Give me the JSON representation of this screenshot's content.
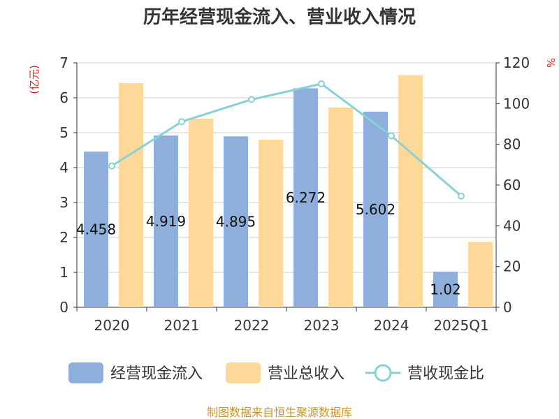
{
  "chart_data": {
    "type": "bar",
    "title": "历年经营现金流入、营业收入情况",
    "categories": [
      "2020",
      "2021",
      "2022",
      "2023",
      "2024",
      "2025Q1"
    ],
    "series": [
      {
        "name": "经营现金流入",
        "type": "bar",
        "axis": "left",
        "color": "#8eaedb",
        "values": [
          4.458,
          4.919,
          4.895,
          6.272,
          5.602,
          1.02
        ],
        "labels": [
          "4.458",
          "4.919",
          "4.895",
          "6.272",
          "5.602",
          "1.02"
        ]
      },
      {
        "name": "营业总收入",
        "type": "bar",
        "axis": "left",
        "color": "#fdd898",
        "values": [
          6.42,
          5.4,
          4.8,
          5.72,
          6.65,
          1.87
        ]
      },
      {
        "name": "营收现金比",
        "type": "line",
        "axis": "right",
        "color": "#88d1d4",
        "values": [
          69.4,
          91.1,
          102.0,
          109.7,
          84.2,
          54.6
        ]
      }
    ],
    "y_left": {
      "label": "(亿元)",
      "min": 0,
      "max": 7,
      "ticks": [
        "0",
        "1",
        "2",
        "3",
        "4",
        "5",
        "6",
        "7"
      ]
    },
    "y_right": {
      "label": "%",
      "min": 0,
      "max": 120,
      "ticks": [
        "0",
        "20",
        "40",
        "60",
        "80",
        "100",
        "120"
      ]
    },
    "grid": true,
    "legend_position": "bottom"
  },
  "source": "制图数据来自恒生聚源数据库"
}
